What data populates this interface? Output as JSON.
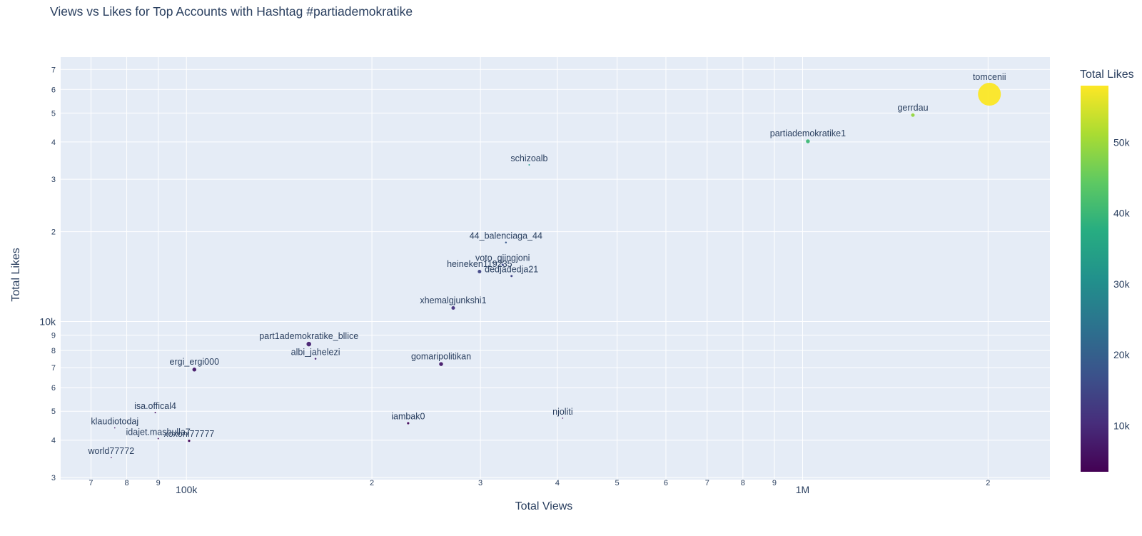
{
  "title": "Views vs Likes for Top Accounts with Hashtag #partiademokratike",
  "chart_data": {
    "type": "scatter",
    "title": "Views vs Likes for Top Accounts with Hashtag #partiademokratike",
    "xlabel": "Total Views",
    "ylabel": "Total Likes",
    "x_scale": "log",
    "y_scale": "log",
    "xlim": [
      62500,
      2520000
    ],
    "ylim": [
      2950,
      77000
    ],
    "grid": true,
    "background_color": "#e5ecf6",
    "grid_color": "#ffffff",
    "text_color": "#2a3f5f",
    "legend_position": "none",
    "x_ticks": [
      {
        "value": 70000,
        "label": "7",
        "major": false
      },
      {
        "value": 80000,
        "label": "8",
        "major": false
      },
      {
        "value": 90000,
        "label": "9",
        "major": false
      },
      {
        "value": 100000,
        "label": "100k",
        "major": true
      },
      {
        "value": 200000,
        "label": "2",
        "major": false
      },
      {
        "value": 300000,
        "label": "3",
        "major": false
      },
      {
        "value": 400000,
        "label": "4",
        "major": false
      },
      {
        "value": 500000,
        "label": "5",
        "major": false
      },
      {
        "value": 600000,
        "label": "6",
        "major": false
      },
      {
        "value": 700000,
        "label": "7",
        "major": false
      },
      {
        "value": 800000,
        "label": "8",
        "major": false
      },
      {
        "value": 900000,
        "label": "9",
        "major": false
      },
      {
        "value": 1000000,
        "label": "1M",
        "major": true
      },
      {
        "value": 2000000,
        "label": "2",
        "major": false
      }
    ],
    "y_ticks": [
      {
        "value": 3000,
        "label": "3",
        "major": false
      },
      {
        "value": 4000,
        "label": "4",
        "major": false
      },
      {
        "value": 5000,
        "label": "5",
        "major": false
      },
      {
        "value": 6000,
        "label": "6",
        "major": false
      },
      {
        "value": 7000,
        "label": "7",
        "major": false
      },
      {
        "value": 8000,
        "label": "8",
        "major": false
      },
      {
        "value": 9000,
        "label": "9",
        "major": false
      },
      {
        "value": 10000,
        "label": "10k",
        "major": true
      },
      {
        "value": 20000,
        "label": "2",
        "major": false
      },
      {
        "value": 30000,
        "label": "3",
        "major": false
      },
      {
        "value": 40000,
        "label": "4",
        "major": false
      },
      {
        "value": 50000,
        "label": "5",
        "major": false
      },
      {
        "value": 60000,
        "label": "6",
        "major": false
      },
      {
        "value": 70000,
        "label": "7",
        "major": false
      }
    ],
    "colorbar": {
      "title": "Total Likes",
      "cmin": 3500,
      "cmax": 58000,
      "colorscale": "viridis",
      "ticks": [
        {
          "value": 10000,
          "label": "10k"
        },
        {
          "value": 20000,
          "label": "20k"
        },
        {
          "value": 30000,
          "label": "30k"
        },
        {
          "value": 40000,
          "label": "40k"
        },
        {
          "value": 50000,
          "label": "50k"
        }
      ]
    },
    "viridis_stops": [
      [
        0.0,
        "#440154"
      ],
      [
        0.125,
        "#472d7b"
      ],
      [
        0.25,
        "#3b528b"
      ],
      [
        0.375,
        "#2c728e"
      ],
      [
        0.5,
        "#21918c"
      ],
      [
        0.625,
        "#27ad81"
      ],
      [
        0.75,
        "#5ec962"
      ],
      [
        0.875,
        "#aadc32"
      ],
      [
        1.0,
        "#fde725"
      ]
    ],
    "points": [
      {
        "name": "tomcenii",
        "views": 2010000,
        "likes": 57800,
        "marker_size": 32
      },
      {
        "name": "gerrdau",
        "views": 1510000,
        "likes": 49200,
        "marker_size": 5
      },
      {
        "name": "partiademokratike1",
        "views": 1020000,
        "likes": 40200,
        "marker_size": 5.5
      },
      {
        "name": "schizoalb",
        "views": 360000,
        "likes": 33500,
        "marker_size": 2
      },
      {
        "name": "44_balenciaga_44",
        "views": 330000,
        "likes": 18400,
        "marker_size": 2.5
      },
      {
        "name": "voto_gjingjoni",
        "views": 326000,
        "likes": 15500,
        "marker_size": 3
      },
      {
        "name": "heineken119235",
        "views": 299000,
        "likes": 14700,
        "marker_size": 5
      },
      {
        "name": "dedjadedja21",
        "views": 337000,
        "likes": 14200,
        "marker_size": 3
      },
      {
        "name": "xhemalgjunkshi1",
        "views": 271000,
        "likes": 11100,
        "marker_size": 5
      },
      {
        "name": "part1ademokratike_bllice",
        "views": 158000,
        "likes": 8400,
        "marker_size": 6.5
      },
      {
        "name": "albi_jahelezi",
        "views": 162000,
        "likes": 7500,
        "marker_size": 2.5
      },
      {
        "name": "gomaripolitikan",
        "views": 259000,
        "likes": 7200,
        "marker_size": 5.5
      },
      {
        "name": "ergi_ergi000",
        "views": 103000,
        "likes": 6900,
        "marker_size": 5.5
      },
      {
        "name": "isa.offical4",
        "views": 89000,
        "likes": 4950,
        "marker_size": 2
      },
      {
        "name": "njoliti",
        "views": 408000,
        "likes": 4740,
        "marker_size": 1.6
      },
      {
        "name": "iambak0",
        "views": 229000,
        "likes": 4560,
        "marker_size": 3.2
      },
      {
        "name": "klaudiotodaj",
        "views": 76500,
        "likes": 4400,
        "marker_size": 1.6
      },
      {
        "name": "idajet.mashulla7",
        "views": 90000,
        "likes": 4050,
        "marker_size": 2
      },
      {
        "name": "xoxoni77777",
        "views": 101000,
        "likes": 3980,
        "marker_size": 3.2
      },
      {
        "name": "world77772",
        "views": 75500,
        "likes": 3500,
        "marker_size": 1.6
      }
    ]
  }
}
